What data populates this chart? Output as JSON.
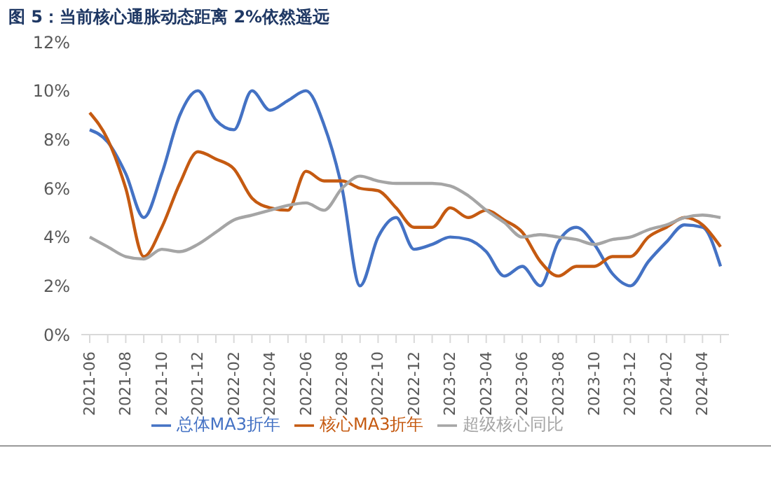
{
  "chart_data": {
    "type": "line",
    "title": "图 5：当前核心通胀动态距离 2%依然遥远",
    "categories": [
      "2021-06",
      null,
      "2021-08",
      null,
      "2021-10",
      null,
      "2021-12",
      null,
      "2022-02",
      null,
      "2022-04",
      null,
      "2022-06",
      null,
      "2022-08",
      null,
      "2022-10",
      null,
      "2022-12",
      null,
      "2023-02",
      null,
      "2023-04",
      null,
      "2023-06",
      null,
      "2023-08",
      null,
      "2023-10",
      null,
      "2023-12",
      null,
      "2024-02",
      null,
      "2024-04",
      null
    ],
    "series": [
      {
        "name": "总体MA3折年",
        "color": "#4472c4",
        "values": [
          8.4,
          7.9,
          6.6,
          4.8,
          6.6,
          9.0,
          10.0,
          8.8,
          8.4,
          10.0,
          9.2,
          9.6,
          10.0,
          8.6,
          6.0,
          2.0,
          4.0,
          4.8,
          3.5,
          3.7,
          4.0,
          3.9,
          3.4,
          2.4,
          2.8,
          2.0,
          3.8,
          4.4,
          3.7,
          2.5,
          2.0,
          3.0,
          3.8,
          4.5,
          4.4,
          2.8
        ]
      },
      {
        "name": "核心MA3折年",
        "color": "#c55a11",
        "values": [
          9.1,
          8.0,
          6.0,
          3.2,
          4.4,
          6.2,
          7.5,
          7.2,
          6.8,
          5.6,
          5.2,
          5.1,
          6.7,
          6.3,
          6.3,
          6.0,
          5.9,
          5.2,
          4.4,
          4.4,
          5.2,
          4.8,
          5.1,
          4.7,
          4.2,
          3.0,
          2.4,
          2.8,
          2.8,
          3.2,
          3.2,
          4.0,
          4.4,
          4.8,
          4.5,
          3.6
        ]
      },
      {
        "name": "超级核心同比",
        "color": "#a5a5a5",
        "values": [
          4.0,
          3.6,
          3.2,
          3.1,
          3.5,
          3.4,
          3.7,
          4.2,
          4.7,
          4.9,
          5.1,
          5.3,
          5.4,
          5.1,
          6.0,
          6.5,
          6.3,
          6.2,
          6.2,
          6.2,
          6.1,
          5.7,
          5.1,
          4.6,
          4.0,
          4.1,
          4.0,
          3.9,
          3.7,
          3.9,
          4.0,
          4.3,
          4.5,
          4.8,
          4.9,
          4.8
        ]
      }
    ],
    "ylim": [
      0,
      12
    ],
    "yticks": [
      {
        "value": 0,
        "label": "0%"
      },
      {
        "value": 2,
        "label": "2%"
      },
      {
        "value": 4,
        "label": "4%"
      },
      {
        "value": 6,
        "label": "6%"
      },
      {
        "value": 8,
        "label": "8%"
      },
      {
        "value": 10,
        "label": "10%"
      },
      {
        "value": 12,
        "label": "12%"
      }
    ],
    "grid": false,
    "legend": "bottom",
    "marker": "none",
    "line_style": "solid"
  }
}
